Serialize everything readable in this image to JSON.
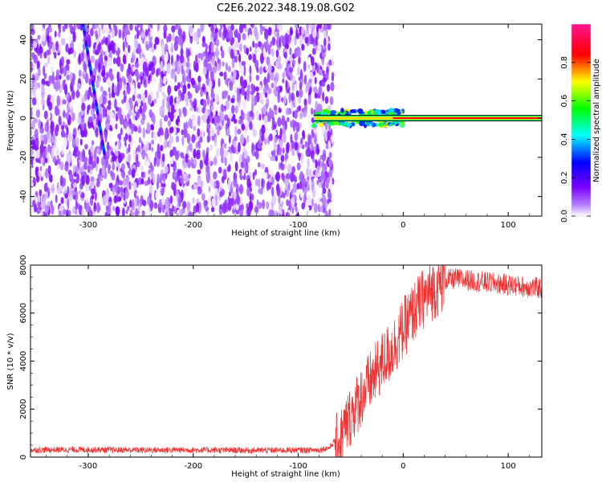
{
  "figure": {
    "title": "C2E6.2022.348.19.08.G02"
  },
  "chart_data": [
    {
      "type": "heatmap",
      "title": "C2E6.2022.348.19.08.G02",
      "xlabel": "Height of straight line (km)",
      "ylabel": "Frequency (Hz)",
      "xlim": [
        -355,
        132
      ],
      "ylim": [
        -50,
        48
      ],
      "xticks": [
        -300,
        -200,
        -100,
        0,
        100
      ],
      "yticks": [
        -40,
        -20,
        0,
        20,
        40
      ],
      "grid": false,
      "colorbar": {
        "label": "Normalized spectral amplitude",
        "range": [
          0,
          1
        ],
        "ticks": [
          0.0,
          0.2,
          0.4,
          0.6,
          0.8
        ],
        "colors": [
          "#ffffff",
          "#7b00ff",
          "#0000ff",
          "#00ffff",
          "#00ff00",
          "#ffff00",
          "#ff0000",
          "#ff1493"
        ]
      },
      "features": {
        "noise_region_x": [
          -355,
          -73
        ],
        "noise_amplitude_range": [
          0.0,
          0.15
        ],
        "dominant_tone_start_x": -85,
        "dominant_tone_frequency_hz": 0,
        "dominant_tone_amplitude": 0.85,
        "unstable_segment_x": [
          -85,
          0
        ],
        "drifting_tone": {
          "x": [
            -305,
            -284
          ],
          "freq_hz": [
            48,
            -20
          ]
        }
      }
    },
    {
      "type": "line",
      "xlabel": "Height of straight line (km)",
      "ylabel": "SNR (10 * v/v)",
      "xlim": [
        -355,
        132
      ],
      "ylim": [
        0,
        8000
      ],
      "xticks": [
        -300,
        -200,
        -100,
        0,
        100
      ],
      "yticks": [
        0,
        2000,
        4000,
        6000,
        8000
      ],
      "grid": false,
      "series": [
        {
          "color": "#ee3333",
          "x": [
            -355,
            -300,
            -250,
            -200,
            -150,
            -100,
            -80,
            -70,
            -60,
            -50,
            -40,
            -30,
            -20,
            -10,
            0,
            10,
            20,
            30,
            40,
            50,
            60,
            70,
            80,
            90,
            100,
            110,
            120,
            132
          ],
          "y": [
            300,
            310,
            290,
            300,
            280,
            290,
            300,
            400,
            1000,
            2000,
            2800,
            3500,
            4200,
            4800,
            5600,
            6300,
            6900,
            7300,
            7600,
            7650,
            7600,
            7550,
            7500,
            7450,
            7400,
            7350,
            7300,
            7250
          ]
        }
      ]
    }
  ]
}
